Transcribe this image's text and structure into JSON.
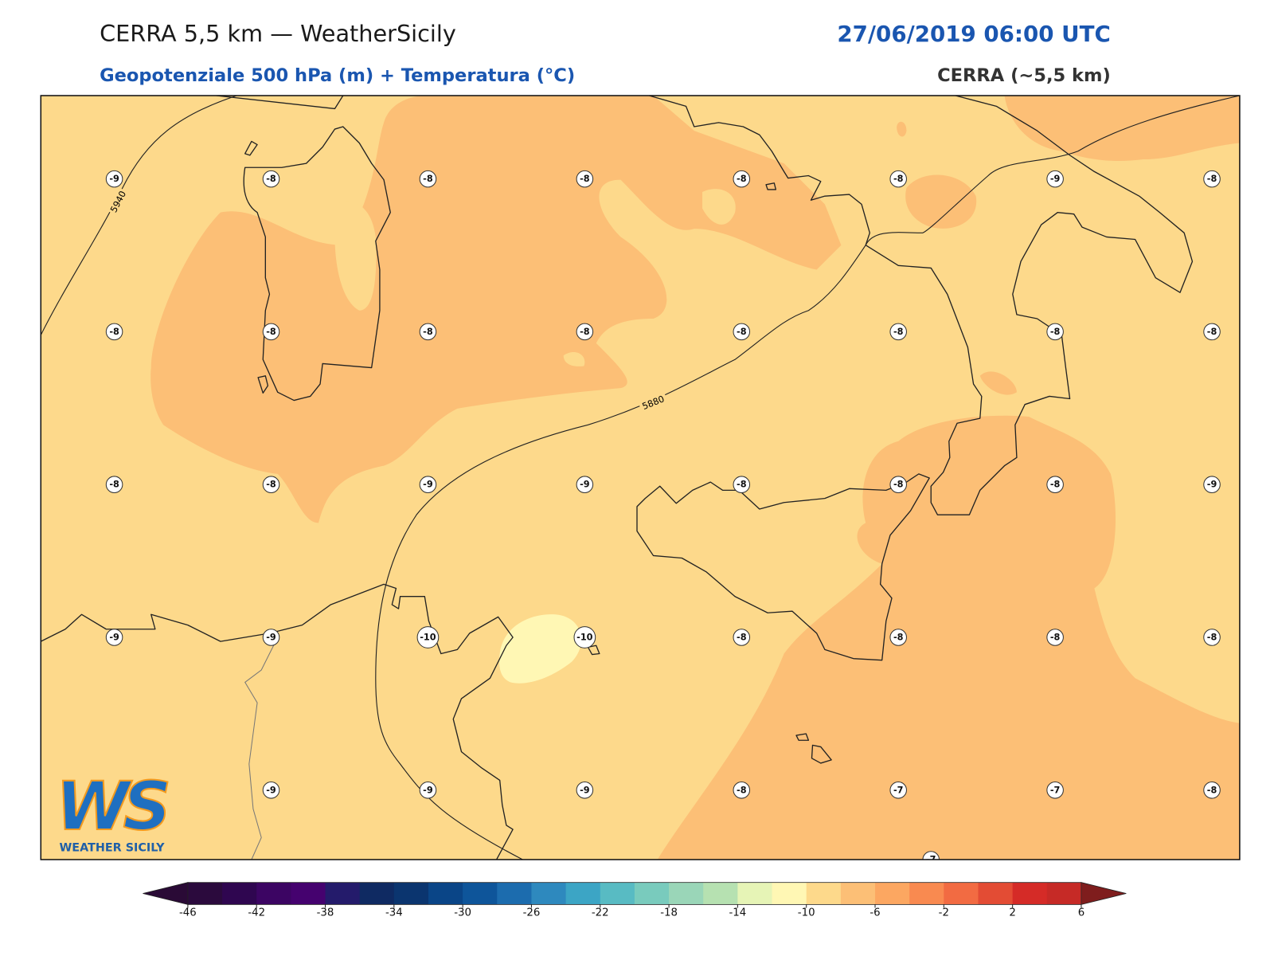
{
  "header": {
    "title": "CERRA 5,5 km — WeatherSicily",
    "valid_time": "27/06/2019 06:00 UTC",
    "subtitle": "Geopotenziale 500 hPa (m) + Temperatura (°C)",
    "source": "CERRA (~5,5 km)"
  },
  "map": {
    "contour_labels": [
      "5940",
      "5880"
    ],
    "temperature_grid": [
      [
        -9,
        -8,
        -8,
        -8,
        -8,
        -8,
        -9,
        -8
      ],
      [
        -8,
        -8,
        -8,
        -8,
        -8,
        -8,
        -8,
        -8
      ],
      [
        -8,
        -8,
        -9,
        -9,
        -8,
        -8,
        -8,
        -9
      ],
      [
        -9,
        -9,
        -10,
        -10,
        -8,
        -8,
        -8,
        -8
      ],
      [
        null,
        -9,
        -9,
        -9,
        -8,
        -7,
        -7,
        -8
      ]
    ],
    "edge_labels": [
      -7
    ]
  },
  "colorbar": {
    "levels": [
      -46,
      -44,
      -42,
      -40,
      -38,
      -36,
      -34,
      -32,
      -30,
      -28,
      -26,
      -24,
      -22,
      -20,
      -18,
      -16,
      -14,
      -12,
      -10,
      -8,
      -6,
      -4,
      -2,
      0,
      2,
      4,
      6
    ],
    "ticks": [
      -46,
      -42,
      -38,
      -34,
      -30,
      -26,
      -22,
      -18,
      -14,
      -10,
      -6,
      -2,
      2,
      6
    ],
    "colors": [
      "#2b0a3d",
      "#2f0650",
      "#3c0563",
      "#45026f",
      "#241b6b",
      "#0f2a62",
      "#0b356f",
      "#0a4587",
      "#0e559a",
      "#1c6cae",
      "#2e89be",
      "#3ca5c5",
      "#58bbc3",
      "#79cbbd",
      "#9ad6b8",
      "#b6e1b1",
      "#e6f4b6",
      "#fff7b4",
      "#fdd98b",
      "#fcbf76",
      "#fca761",
      "#f98a50",
      "#f26b42",
      "#e34c34",
      "#d52b27",
      "#c62a26"
    ],
    "extend_colors": [
      "#2a0a36",
      "#7f1d1d"
    ]
  },
  "logo": {
    "mark": "WS",
    "name": "WEATHER SICILY"
  }
}
